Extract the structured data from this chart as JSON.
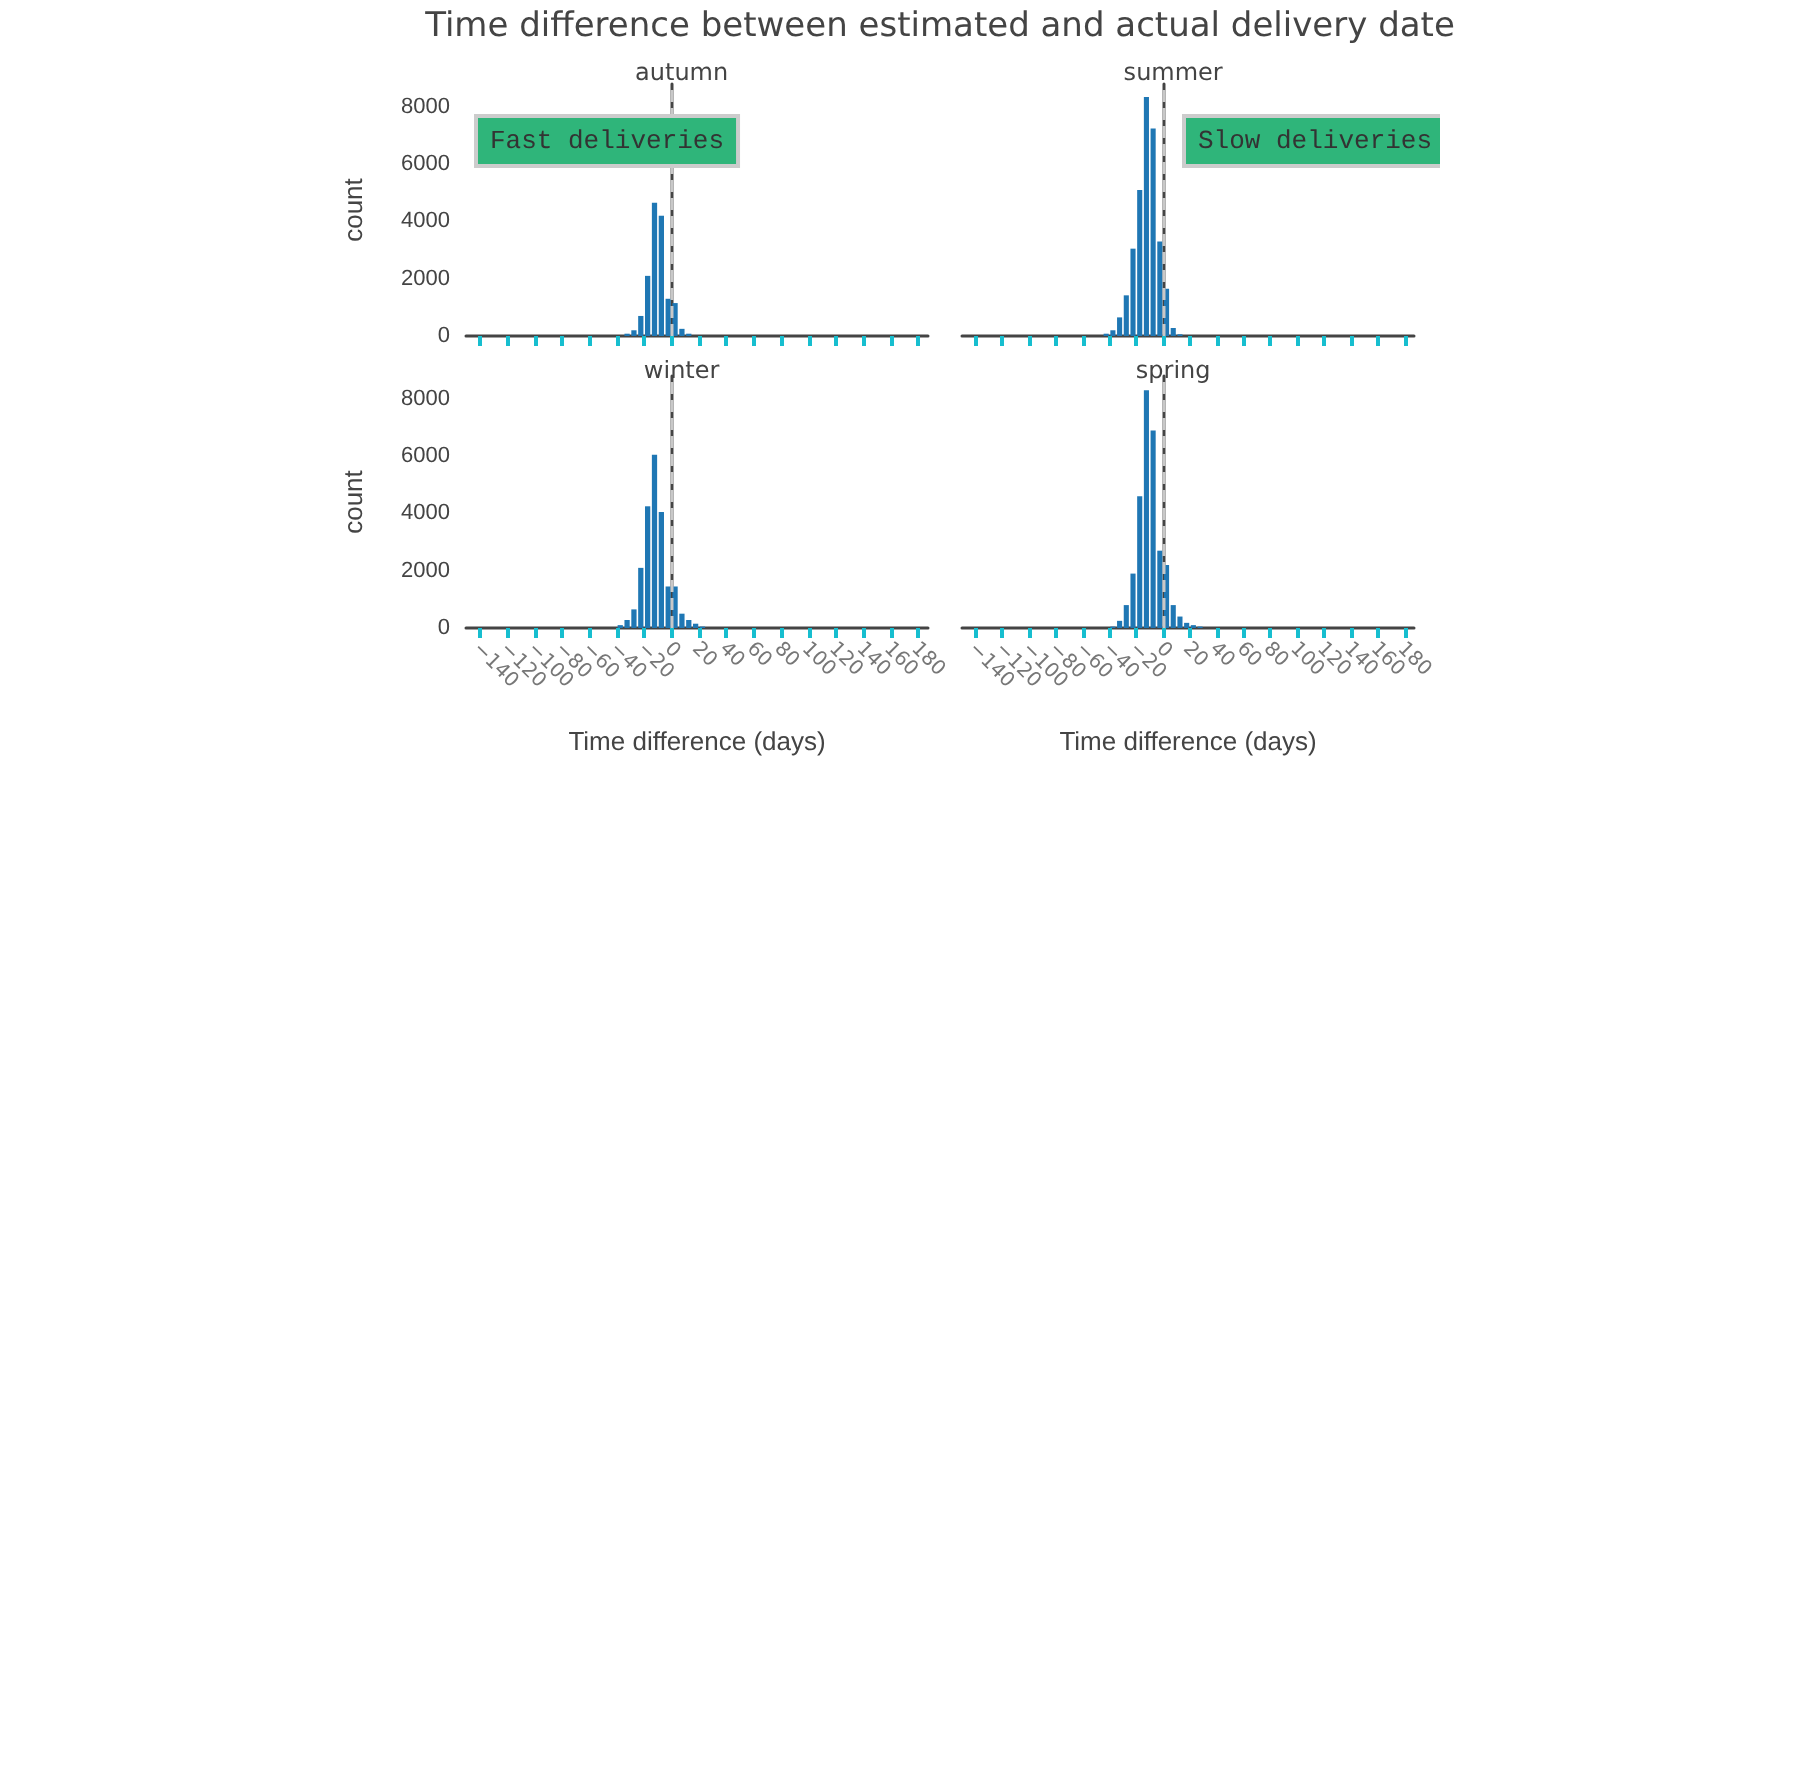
{
  "chart_data": [
    {
      "type": "histogram",
      "title": "Time difference between estimated and actual delivery date",
      "subtitle": "autumn",
      "ylabel": "count",
      "color": "#1f77b4",
      "bins": [
        -45,
        -40,
        -35,
        -30,
        -25,
        -20,
        -15,
        -10,
        -5,
        0,
        5,
        10,
        15,
        20,
        25,
        30
      ],
      "values": [
        0,
        null,
        80,
        200,
        700,
        2100,
        4650,
        4200,
        1300,
        1150,
        250,
        80,
        null,
        0,
        0
      ],
      "xlim": [
        -150,
        187
      ],
      "xticks": [
        -140,
        -120,
        -100,
        -80,
        -60,
        -40,
        -20,
        0,
        20,
        40,
        60,
        80,
        100,
        120,
        140,
        160,
        180
      ],
      "ylim": [
        0,
        8800
      ],
      "yticks": [
        0,
        2000,
        4000,
        6000,
        8000
      ],
      "ref_lines": [
        {
          "axis": "x",
          "value": 0,
          "color": "#c8c8c8",
          "line_style": "dashed"
        }
      ],
      "annotations": [
        "Fast deliveries"
      ],
      "tick_labels": "y",
      "grid": false
    },
    {
      "type": "histogram",
      "subtitle": "summer",
      "color": "#1f77b4",
      "bins": [
        -45,
        -40,
        -35,
        -30,
        -25,
        -20,
        -15,
        -10,
        -5,
        0,
        5,
        10,
        15,
        20,
        25,
        30
      ],
      "values": [
        80,
        200,
        650,
        1420,
        3050,
        5100,
        8350,
        7250,
        3300,
        1650,
        280,
        60,
        0,
        0,
        0
      ],
      "xlim": [
        -150,
        187
      ],
      "xticks": [
        -140,
        -120,
        -100,
        -80,
        -60,
        -40,
        -20,
        0,
        20,
        40,
        60,
        80,
        100,
        120,
        140,
        160,
        180
      ],
      "ylim": [
        0,
        8800
      ],
      "yticks": [
        0,
        2000,
        4000,
        6000,
        8000
      ],
      "ref_lines": [
        {
          "axis": "x",
          "value": 0,
          "color": "#c8c8c8",
          "line_style": "dashed"
        }
      ],
      "annotations": [
        "Slow deliveries"
      ],
      "tick_labels": false,
      "grid": false
    },
    {
      "type": "histogram",
      "subtitle": "winter",
      "xlabel": "Time difference (days)",
      "ylabel": "count",
      "color": "#1f77b4",
      "bins": [
        -45,
        -40,
        -35,
        -30,
        -25,
        -20,
        -15,
        -10,
        -5,
        0,
        5,
        10,
        15,
        20,
        25,
        30
      ],
      "values": [
        0,
        100,
        280,
        650,
        2100,
        4250,
        6050,
        4050,
        1450,
        1450,
        500,
        280,
        150,
        50,
        0
      ],
      "xlim": [
        -150,
        187
      ],
      "xticks": [
        -140,
        -120,
        -100,
        -80,
        -60,
        -40,
        -20,
        0,
        20,
        40,
        60,
        80,
        100,
        120,
        140,
        160,
        180
      ],
      "ylim": [
        0,
        8800
      ],
      "yticks": [
        0,
        2000,
        4000,
        6000,
        8000
      ],
      "ref_lines": [
        {
          "axis": "x",
          "value": 0,
          "color": "#c8c8c8",
          "line_style": "dashed"
        }
      ],
      "grid": false
    },
    {
      "type": "histogram",
      "subtitle": "spring",
      "xlabel": "Time difference (days)",
      "color": "#1f77b4",
      "bins": [
        -45,
        -40,
        -35,
        -30,
        -25,
        -20,
        -15,
        -10,
        -5,
        0,
        5,
        10,
        15,
        20,
        25,
        30
      ],
      "values": [
        0,
        50,
        250,
        800,
        1900,
        4600,
        8300,
        6900,
        2700,
        2200,
        800,
        400,
        180,
        100,
        50
      ],
      "xlim": [
        -150,
        187
      ],
      "xticks": [
        -140,
        -120,
        -100,
        -80,
        -60,
        -40,
        -20,
        0,
        20,
        40,
        60,
        80,
        100,
        120,
        140,
        160,
        180
      ],
      "ylim": [
        0,
        8800
      ],
      "yticks": [
        0,
        2000,
        4000,
        6000,
        8000
      ],
      "ref_lines": [
        {
          "axis": "x",
          "value": 0,
          "color": "#c8c8c8",
          "line_style": "dashed"
        }
      ],
      "tick_labels": "x",
      "grid": false
    }
  ]
}
